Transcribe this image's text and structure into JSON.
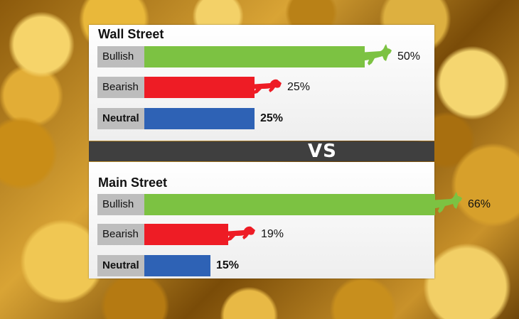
{
  "colors": {
    "bullish": "#7cc242",
    "bearish": "#ee1c25",
    "neutral": "#2e62b5",
    "label_bg": "#bdbdbd",
    "vs_band": "#3f3f3f"
  },
  "icons": {
    "bull": "bull-icon",
    "bear": "bear-icon"
  },
  "vs_label": "VS",
  "chart_data": [
    {
      "type": "bar",
      "title": "Wall Street",
      "categories": [
        "Bullish",
        "Bearish",
        "Neutral"
      ],
      "values": [
        50,
        25,
        25
      ],
      "value_labels": [
        "50%",
        "25%",
        "25%"
      ],
      "ylim": [
        0,
        100
      ]
    },
    {
      "type": "bar",
      "title": "Main Street",
      "categories": [
        "Bullish",
        "Bearish",
        "Neutral"
      ],
      "values": [
        66,
        19,
        15
      ],
      "value_labels": [
        "66%",
        "19%",
        "15%"
      ],
      "ylim": [
        0,
        100
      ]
    }
  ]
}
